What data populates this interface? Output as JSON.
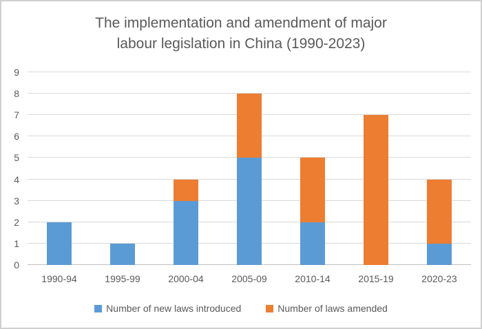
{
  "window": {
    "background": "#ffffff",
    "border_color": "#cfcfcf"
  },
  "chart_data": {
    "type": "bar",
    "stacked": true,
    "title": "The implementation and amendment of major labour legislation in China (1990-2023)",
    "title_lines": [
      "The implementation and amendment of major",
      "labour legislation in China (1990-2023)"
    ],
    "categories": [
      "1990-94",
      "1995-99",
      "2000-04",
      "2005-09",
      "2010-14",
      "2015-19",
      "2020-23"
    ],
    "series": [
      {
        "name": "Number of new laws introduced",
        "color": "#5B9BD5",
        "values": [
          2,
          1,
          3,
          5,
          2,
          0,
          1
        ]
      },
      {
        "name": "Number of laws amended",
        "color": "#ED7D31",
        "values": [
          0,
          0,
          1,
          3,
          3,
          7,
          3
        ]
      }
    ],
    "stack_totals": [
      2,
      1,
      4,
      8,
      5,
      7,
      4
    ],
    "xlabel": "",
    "ylabel": "",
    "ylim": [
      0,
      9
    ],
    "ytick_step": 1,
    "ytick_labels": [
      "0",
      "1",
      "2",
      "3",
      "4",
      "5",
      "6",
      "7",
      "8",
      "9"
    ],
    "grid": true,
    "legend_position": "bottom",
    "colors": {
      "gridline": "#D9D9D9",
      "axis_line": "#BFBFBF",
      "text": "#595959",
      "title_text": "#595959"
    }
  }
}
